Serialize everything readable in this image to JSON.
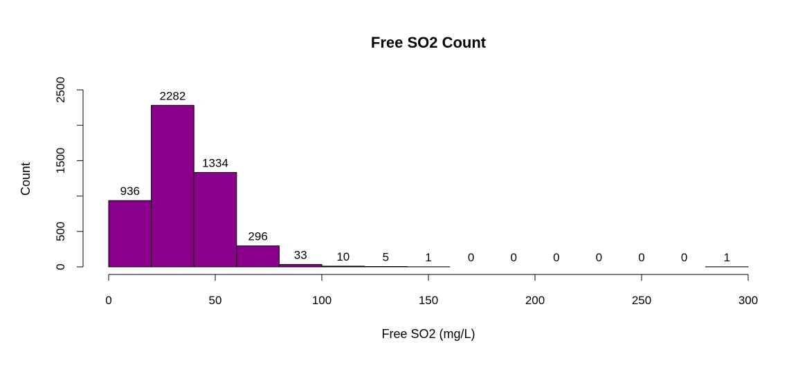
{
  "chart_data": {
    "type": "bar",
    "title": "Free SO2 Count",
    "xlabel": "Free SO2 (mg/L)",
    "ylabel": "Count",
    "bins": [
      [
        0,
        20
      ],
      [
        20,
        40
      ],
      [
        40,
        60
      ],
      [
        60,
        80
      ],
      [
        80,
        100
      ],
      [
        100,
        120
      ],
      [
        120,
        140
      ],
      [
        140,
        160
      ],
      [
        160,
        180
      ],
      [
        180,
        200
      ],
      [
        200,
        220
      ],
      [
        220,
        240
      ],
      [
        240,
        260
      ],
      [
        260,
        280
      ],
      [
        280,
        300
      ]
    ],
    "values": [
      936,
      2282,
      1334,
      296,
      33,
      10,
      5,
      1,
      0,
      0,
      0,
      0,
      0,
      0,
      1
    ],
    "xlim": [
      0,
      300
    ],
    "ylim": [
      0,
      2500
    ],
    "xticks": [
      0,
      50,
      100,
      150,
      200,
      250,
      300
    ],
    "yticks": [
      0,
      500,
      1500,
      2500
    ],
    "bar_color": "#8B008B",
    "grid": false
  }
}
